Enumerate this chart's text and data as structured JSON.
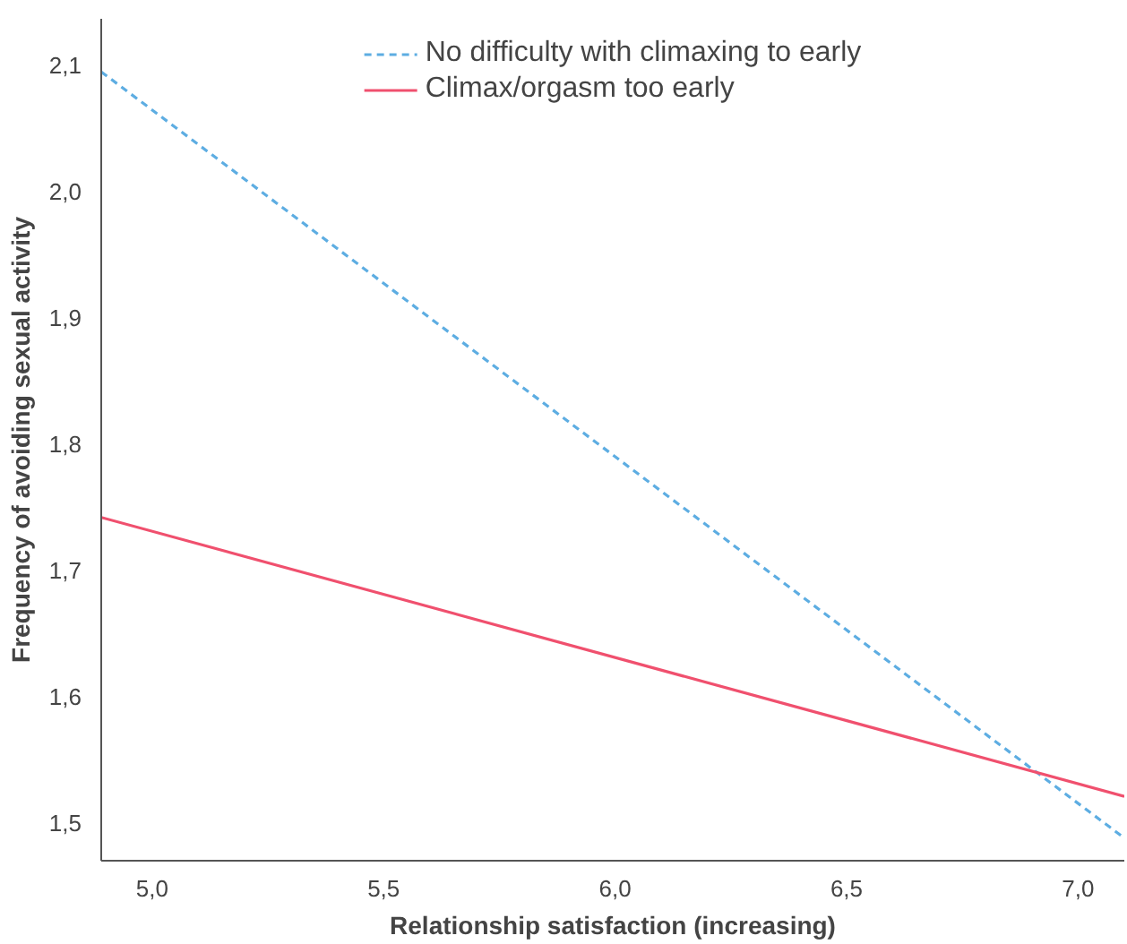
{
  "chart_data": {
    "type": "line",
    "xlabel": "Relationship satisfaction (increasing)",
    "ylabel": "Frequency of avoiding sexual activity",
    "xlim": [
      4.89,
      7.1
    ],
    "ylim": [
      1.47,
      2.137
    ],
    "xticks": [
      {
        "value": 5.0,
        "label": "5,0"
      },
      {
        "value": 5.5,
        "label": "5,5"
      },
      {
        "value": 6.0,
        "label": "6,0"
      },
      {
        "value": 6.5,
        "label": "6,5"
      },
      {
        "value": 7.0,
        "label": "7,0"
      }
    ],
    "yticks": [
      {
        "value": 1.5,
        "label": "1,5"
      },
      {
        "value": 1.6,
        "label": "1,6"
      },
      {
        "value": 1.7,
        "label": "1,7"
      },
      {
        "value": 1.8,
        "label": "1,8"
      },
      {
        "value": 1.9,
        "label": "1,9"
      },
      {
        "value": 2.0,
        "label": "2,0"
      },
      {
        "value": 2.1,
        "label": "2,1"
      }
    ],
    "x": [
      4.89,
      7.1
    ],
    "series": [
      {
        "name": "No difficulty with climaxing to early",
        "color": "#5dade2",
        "values": [
          2.095,
          1.488
        ],
        "line_style": "dashed"
      },
      {
        "name": "Climax/orgasm too early",
        "color": "#f0506e",
        "values": [
          1.742,
          1.521
        ],
        "line_style": "solid"
      }
    ],
    "legend": "top",
    "grid": false,
    "marker": "none"
  }
}
